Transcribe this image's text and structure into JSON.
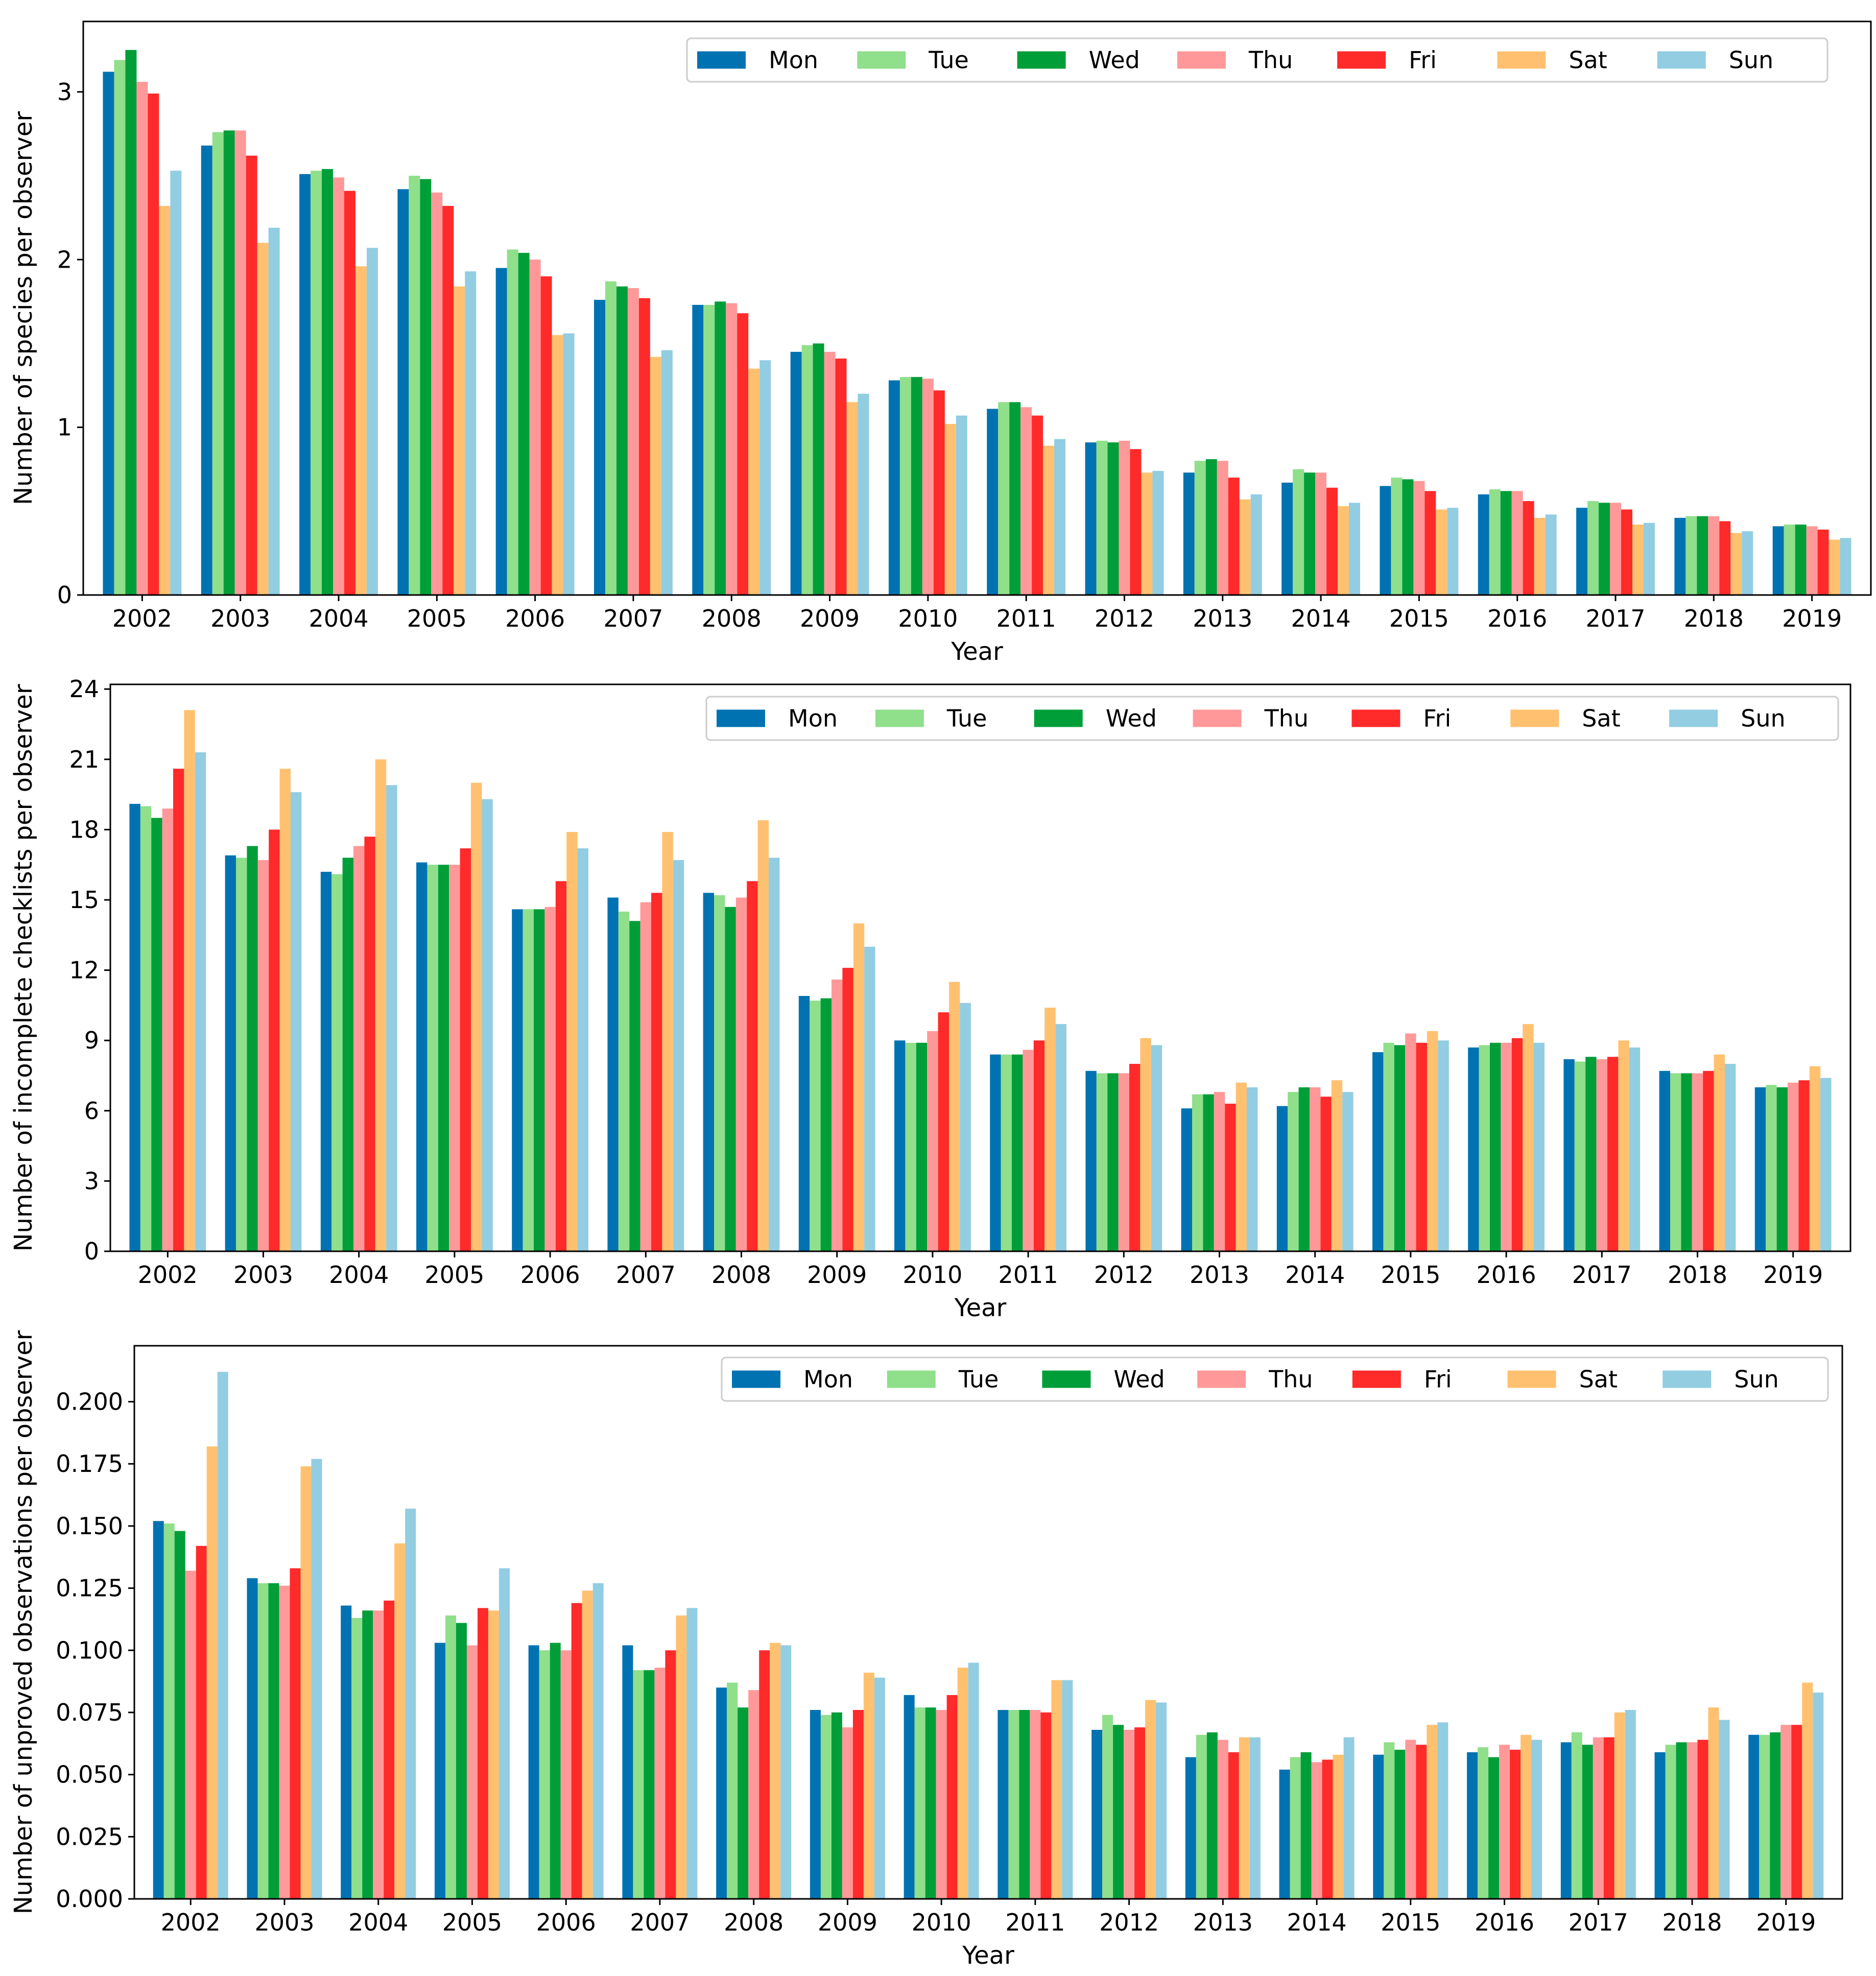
{
  "chart_data": [
    {
      "type": "bar",
      "xlabel": "Year",
      "ylabel": "Number of species per observer",
      "ylim": [
        0,
        3.42
      ],
      "yticks": [
        "0",
        "1",
        "2",
        "3"
      ],
      "ytick_values": [
        0,
        1,
        2,
        3
      ],
      "legend_position": "top-right",
      "categories": [
        "2002",
        "2003",
        "2004",
        "2005",
        "2006",
        "2007",
        "2008",
        "2009",
        "2010",
        "2011",
        "2012",
        "2013",
        "2014",
        "2015",
        "2016",
        "2017",
        "2018",
        "2019"
      ],
      "series": [
        {
          "name": "Mon",
          "color": "#0072b2",
          "values": [
            3.12,
            2.68,
            2.51,
            2.42,
            1.95,
            1.76,
            1.73,
            1.45,
            1.28,
            1.11,
            0.91,
            0.73,
            0.67,
            0.65,
            0.6,
            0.52,
            0.46,
            0.41
          ]
        },
        {
          "name": "Tue",
          "color": "#8fdf8b",
          "values": [
            3.19,
            2.76,
            2.53,
            2.5,
            2.06,
            1.87,
            1.73,
            1.49,
            1.3,
            1.15,
            0.92,
            0.8,
            0.75,
            0.7,
            0.63,
            0.56,
            0.47,
            0.42
          ]
        },
        {
          "name": "Wed",
          "color": "#009e39",
          "values": [
            3.25,
            2.77,
            2.54,
            2.48,
            2.04,
            1.84,
            1.75,
            1.5,
            1.3,
            1.15,
            0.91,
            0.81,
            0.73,
            0.69,
            0.62,
            0.55,
            0.47,
            0.42
          ]
        },
        {
          "name": "Thu",
          "color": "#ff9999",
          "values": [
            3.06,
            2.77,
            2.49,
            2.4,
            2.0,
            1.83,
            1.74,
            1.45,
            1.29,
            1.12,
            0.92,
            0.8,
            0.73,
            0.68,
            0.62,
            0.55,
            0.47,
            0.41
          ]
        },
        {
          "name": "Fri",
          "color": "#ff2a2a",
          "values": [
            2.99,
            2.62,
            2.41,
            2.32,
            1.9,
            1.77,
            1.68,
            1.41,
            1.22,
            1.07,
            0.87,
            0.7,
            0.64,
            0.62,
            0.56,
            0.51,
            0.44,
            0.39
          ]
        },
        {
          "name": "Sat",
          "color": "#ffc170",
          "values": [
            2.32,
            2.1,
            1.96,
            1.84,
            1.55,
            1.42,
            1.35,
            1.15,
            1.02,
            0.89,
            0.73,
            0.57,
            0.53,
            0.51,
            0.46,
            0.42,
            0.37,
            0.33
          ]
        },
        {
          "name": "Sun",
          "color": "#92cde2",
          "values": [
            2.53,
            2.19,
            2.07,
            1.93,
            1.56,
            1.46,
            1.4,
            1.2,
            1.07,
            0.93,
            0.74,
            0.6,
            0.55,
            0.52,
            0.48,
            0.43,
            0.38,
            0.34
          ]
        }
      ]
    },
    {
      "type": "bar",
      "xlabel": "Year",
      "ylabel": "Number of incomplete checklists per observer",
      "ylim": [
        0,
        24.2
      ],
      "yticks": [
        "0",
        "3",
        "6",
        "9",
        "12",
        "15",
        "18",
        "21",
        "24"
      ],
      "ytick_values": [
        0,
        3,
        6,
        9,
        12,
        15,
        18,
        21,
        24
      ],
      "legend_position": "top-right",
      "categories": [
        "2002",
        "2003",
        "2004",
        "2005",
        "2006",
        "2007",
        "2008",
        "2009",
        "2010",
        "2011",
        "2012",
        "2013",
        "2014",
        "2015",
        "2016",
        "2017",
        "2018",
        "2019"
      ],
      "series": [
        {
          "name": "Mon",
          "color": "#0072b2",
          "values": [
            19.1,
            16.9,
            16.2,
            16.6,
            14.6,
            15.1,
            15.3,
            10.9,
            9.0,
            8.4,
            7.7,
            6.1,
            6.2,
            8.5,
            8.7,
            8.2,
            7.7,
            7.0
          ]
        },
        {
          "name": "Tue",
          "color": "#8fdf8b",
          "values": [
            19.0,
            16.8,
            16.1,
            16.5,
            14.6,
            14.5,
            15.2,
            10.7,
            8.9,
            8.4,
            7.6,
            6.7,
            6.8,
            8.9,
            8.8,
            8.1,
            7.6,
            7.1
          ]
        },
        {
          "name": "Wed",
          "color": "#009e39",
          "values": [
            18.5,
            17.3,
            16.8,
            16.5,
            14.6,
            14.1,
            14.7,
            10.8,
            8.9,
            8.4,
            7.6,
            6.7,
            7.0,
            8.8,
            8.9,
            8.3,
            7.6,
            7.0
          ]
        },
        {
          "name": "Thu",
          "color": "#ff9999",
          "values": [
            18.9,
            16.7,
            17.3,
            16.5,
            14.7,
            14.9,
            15.1,
            11.6,
            9.4,
            8.6,
            7.6,
            6.8,
            7.0,
            9.3,
            8.9,
            8.2,
            7.6,
            7.2
          ]
        },
        {
          "name": "Fri",
          "color": "#ff2a2a",
          "values": [
            20.6,
            18.0,
            17.7,
            17.2,
            15.8,
            15.3,
            15.8,
            12.1,
            10.2,
            9.0,
            8.0,
            6.3,
            6.6,
            8.9,
            9.1,
            8.3,
            7.7,
            7.3
          ]
        },
        {
          "name": "Sat",
          "color": "#ffc170",
          "values": [
            23.1,
            20.6,
            21.0,
            20.0,
            17.9,
            17.9,
            18.4,
            14.0,
            11.5,
            10.4,
            9.1,
            7.2,
            7.3,
            9.4,
            9.7,
            9.0,
            8.4,
            7.9
          ]
        },
        {
          "name": "Sun",
          "color": "#92cde2",
          "values": [
            21.3,
            19.6,
            19.9,
            19.3,
            17.2,
            16.7,
            16.8,
            13.0,
            10.6,
            9.7,
            8.8,
            7.0,
            6.8,
            9.0,
            8.9,
            8.7,
            8.0,
            7.4
          ]
        }
      ]
    },
    {
      "type": "bar",
      "xlabel": "Year",
      "ylabel": "Number of unproved observations per observer",
      "ylim": [
        0,
        0.2225
      ],
      "yticks": [
        "0.000",
        "0.025",
        "0.050",
        "0.075",
        "0.100",
        "0.125",
        "0.150",
        "0.175",
        "0.200"
      ],
      "ytick_values": [
        0,
        0.025,
        0.05,
        0.075,
        0.1,
        0.125,
        0.15,
        0.175,
        0.2
      ],
      "legend_position": "top-right",
      "categories": [
        "2002",
        "2003",
        "2004",
        "2005",
        "2006",
        "2007",
        "2008",
        "2009",
        "2010",
        "2011",
        "2012",
        "2013",
        "2014",
        "2015",
        "2016",
        "2017",
        "2018",
        "2019"
      ],
      "series": [
        {
          "name": "Mon",
          "color": "#0072b2",
          "values": [
            0.152,
            0.129,
            0.118,
            0.103,
            0.102,
            0.102,
            0.085,
            0.076,
            0.082,
            0.076,
            0.068,
            0.057,
            0.052,
            0.058,
            0.059,
            0.063,
            0.059,
            0.066
          ]
        },
        {
          "name": "Tue",
          "color": "#8fdf8b",
          "values": [
            0.151,
            0.127,
            0.113,
            0.114,
            0.1,
            0.092,
            0.087,
            0.074,
            0.077,
            0.076,
            0.074,
            0.066,
            0.057,
            0.063,
            0.061,
            0.067,
            0.062,
            0.066
          ]
        },
        {
          "name": "Wed",
          "color": "#009e39",
          "values": [
            0.148,
            0.127,
            0.116,
            0.111,
            0.103,
            0.092,
            0.077,
            0.075,
            0.077,
            0.076,
            0.07,
            0.067,
            0.059,
            0.06,
            0.057,
            0.062,
            0.063,
            0.067
          ]
        },
        {
          "name": "Thu",
          "color": "#ff9999",
          "values": [
            0.132,
            0.126,
            0.116,
            0.102,
            0.1,
            0.093,
            0.084,
            0.069,
            0.076,
            0.076,
            0.068,
            0.064,
            0.055,
            0.064,
            0.062,
            0.065,
            0.063,
            0.07
          ]
        },
        {
          "name": "Fri",
          "color": "#ff2a2a",
          "values": [
            0.142,
            0.133,
            0.12,
            0.117,
            0.119,
            0.1,
            0.1,
            0.076,
            0.082,
            0.075,
            0.069,
            0.059,
            0.056,
            0.062,
            0.06,
            0.065,
            0.064,
            0.07
          ]
        },
        {
          "name": "Sat",
          "color": "#ffc170",
          "values": [
            0.182,
            0.174,
            0.143,
            0.116,
            0.124,
            0.114,
            0.103,
            0.091,
            0.093,
            0.088,
            0.08,
            0.065,
            0.058,
            0.07,
            0.066,
            0.075,
            0.077,
            0.087
          ]
        },
        {
          "name": "Sun",
          "color": "#92cde2",
          "values": [
            0.212,
            0.177,
            0.157,
            0.133,
            0.127,
            0.117,
            0.102,
            0.089,
            0.095,
            0.088,
            0.079,
            0.065,
            0.065,
            0.071,
            0.064,
            0.076,
            0.072,
            0.083
          ]
        }
      ]
    }
  ]
}
